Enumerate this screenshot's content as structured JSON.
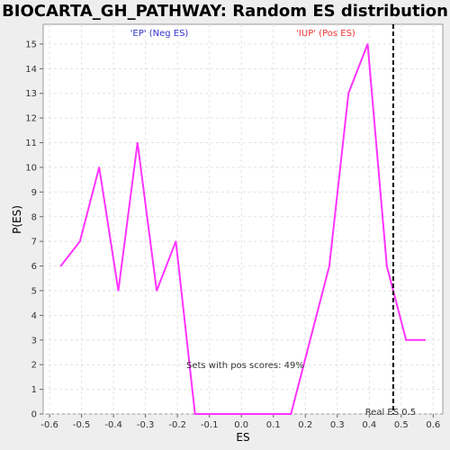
{
  "chart_data": {
    "type": "line",
    "title": "BIOCARTA_GH_PATHWAY: Random ES distribution",
    "xlabel": "ES",
    "ylabel": "P(ES)",
    "xlim": [
      -0.62,
      0.63
    ],
    "ylim": [
      0,
      15.8
    ],
    "x_ticks": [
      "-0.6",
      "-0.5",
      "-0.4",
      "-0.3",
      "-0.2",
      "-0.1",
      "0.0",
      "0.1",
      "0.2",
      "0.3",
      "0.4",
      "0.5",
      "0.6"
    ],
    "y_ticks": [
      "0",
      "1",
      "2",
      "3",
      "4",
      "5",
      "6",
      "7",
      "8",
      "9",
      "10",
      "11",
      "12",
      "13",
      "14",
      "15"
    ],
    "grid": true,
    "series": [
      {
        "color": "#ff33ff",
        "x": [
          -0.565,
          -0.505,
          -0.445,
          -0.385,
          -0.325,
          -0.265,
          -0.205,
          -0.145,
          -0.085,
          0.0,
          0.1,
          0.155,
          0.275,
          0.335,
          0.395,
          0.455,
          0.515,
          0.575
        ],
        "y": [
          6,
          7,
          10,
          5,
          11,
          5,
          7,
          0,
          0,
          0,
          0,
          0,
          6,
          13,
          15,
          6,
          3,
          3
        ]
      }
    ],
    "annotations": {
      "neg_label": "'EP' (Neg ES)",
      "pos_label": "'IUP' (Pos ES)",
      "pos_scores": "Sets with pos scores: 49%",
      "real_es_label": "Real ES 0.5",
      "real_es_value": 0.475
    },
    "colors": {
      "neg": "#3333cc",
      "pos": "#ee3333",
      "line": "#ff33ff"
    }
  }
}
